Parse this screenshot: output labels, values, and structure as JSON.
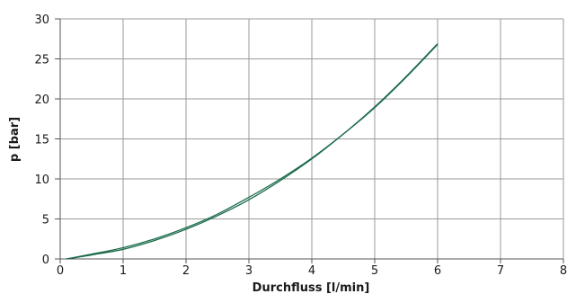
{
  "chart_data": {
    "type": "line",
    "title": "",
    "xlabel": "Durchfluss [l/min]",
    "ylabel": "p [bar]",
    "xlim": [
      0,
      8
    ],
    "ylim": [
      0,
      30
    ],
    "x_ticks": [
      "0",
      "1",
      "2",
      "3",
      "4",
      "5",
      "6",
      "7",
      "8"
    ],
    "y_ticks": [
      "0",
      "5",
      "10",
      "15",
      "20",
      "25",
      "30"
    ],
    "grid": true,
    "legend": "none",
    "colors": {
      "series": "#1b6b4a",
      "grid": "#9a9a9a",
      "axis": "#555555"
    },
    "series": [
      {
        "x": [
          0.1,
          0.5,
          1.0,
          1.5,
          2.0,
          2.5,
          3.0,
          3.5,
          4.0,
          4.5,
          5.0,
          5.5,
          6.0
        ],
        "values": [
          0.0,
          0.5,
          1.2,
          2.3,
          3.7,
          5.4,
          7.4,
          9.8,
          12.5,
          15.6,
          19.0,
          22.8,
          26.9
        ]
      },
      {
        "x": [
          0.1,
          0.5,
          1.0,
          1.5,
          2.0,
          2.5,
          3.0,
          3.5,
          4.0,
          4.5,
          5.0,
          5.5,
          6.0
        ],
        "values": [
          0.0,
          0.6,
          1.4,
          2.5,
          3.9,
          5.6,
          7.7,
          10.0,
          12.6,
          15.6,
          18.9,
          22.7,
          26.8
        ]
      }
    ]
  }
}
